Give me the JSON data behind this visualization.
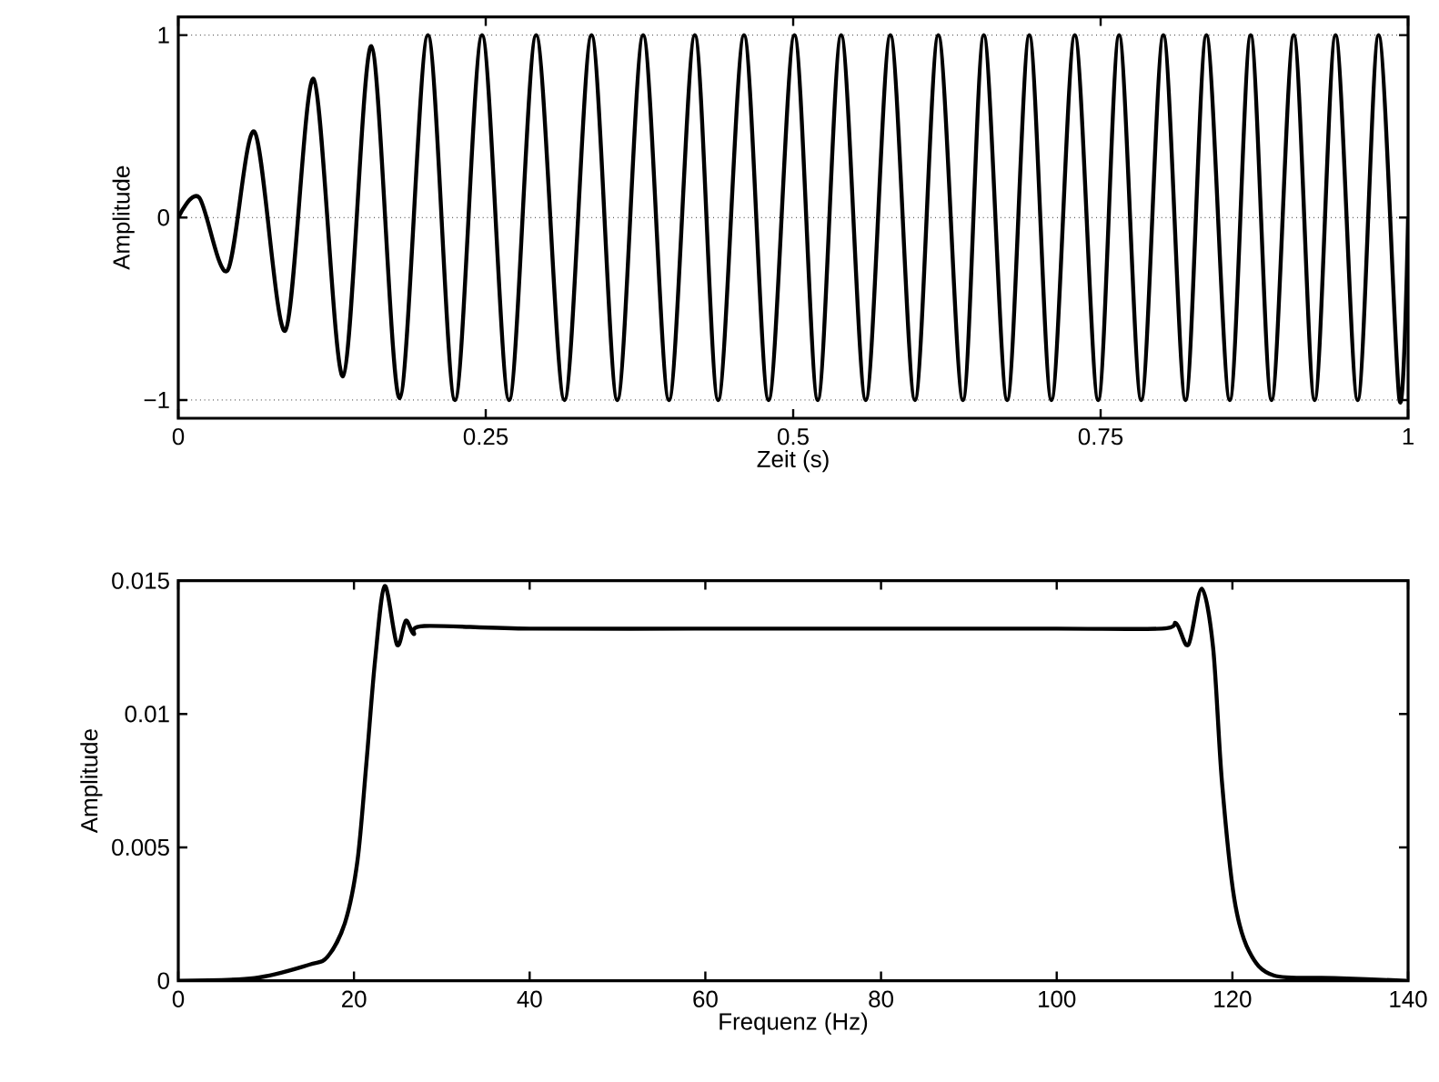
{
  "chart_data": [
    {
      "type": "line",
      "xlabel": "Zeit (s)",
      "ylabel": "Amplitude",
      "xlim": [
        0,
        1
      ],
      "ylim": [
        -1.1,
        1.1
      ],
      "xticks": [
        0,
        0.25,
        0.5,
        0.75,
        1
      ],
      "yticks": [
        {
          "value": -1,
          "label": "−1"
        },
        0,
        1
      ],
      "grid": "y",
      "line_style": "solid",
      "color": "#000000",
      "x": [
        0,
        0.017,
        0.04,
        0.062,
        0.087,
        0.11,
        0.134,
        0.157,
        0.18,
        0.203,
        0.225,
        0.247,
        0.269,
        0.291,
        0.314,
        0.336,
        0.357,
        0.378,
        0.399,
        0.42,
        0.439,
        0.46,
        0.48,
        0.501,
        0.52,
        0.539,
        0.559,
        0.579,
        0.599,
        0.618,
        0.638,
        0.655,
        0.674,
        0.692,
        0.71,
        0.729,
        0.748,
        0.765,
        0.783,
        0.801,
        0.819,
        0.836,
        0.855,
        0.872,
        0.889,
        0.907,
        0.924,
        0.941,
        0.959,
        0.976,
        0.993,
        1.0
      ],
      "values": [
        0,
        0.11,
        -0.29,
        0.47,
        -0.62,
        0.76,
        -0.87,
        0.94,
        -0.99,
        1,
        -1,
        1,
        -1,
        1,
        -1,
        1,
        -1,
        1,
        -1,
        1,
        -1,
        1,
        -1,
        1,
        -1,
        1,
        -1,
        1,
        -1,
        1,
        -1,
        1,
        -1,
        1,
        -1,
        1,
        -1,
        1,
        -1,
        1,
        -1,
        1,
        -1,
        1,
        -1,
        1,
        -1,
        1,
        -1,
        1,
        -1,
        0
      ]
    },
    {
      "type": "line",
      "xlabel": "Frequenz (Hz)",
      "ylabel": "Amplitude",
      "xlim": [
        0,
        140
      ],
      "ylim": [
        0,
        0.015
      ],
      "xticks": [
        0,
        20,
        40,
        60,
        80,
        100,
        120,
        140
      ],
      "yticks": [
        0,
        0.005,
        0.01,
        0.015
      ],
      "grid": false,
      "line_style": "solid",
      "color": "#000000",
      "x": [
        0,
        8.7,
        14.9,
        17.0,
        19.0,
        20.4,
        21.4,
        22.4,
        23.5,
        24.9,
        25.9,
        26.8,
        28,
        40,
        60,
        80,
        100,
        112,
        113.6,
        115.0,
        116.5,
        117.8,
        118.8,
        120.2,
        121.9,
        124.7,
        131.6,
        139.8
      ],
      "values": [
        0,
        0.0001,
        0.0006,
        0.0009,
        0.0022,
        0.0045,
        0.0081,
        0.012,
        0.0148,
        0.0126,
        0.0135,
        0.013,
        0.0133,
        0.0132,
        0.0132,
        0.0132,
        0.0132,
        0.0132,
        0.0134,
        0.0126,
        0.0147,
        0.0125,
        0.0075,
        0.0031,
        0.0011,
        0.0002,
        0.0001,
        0
      ]
    }
  ]
}
